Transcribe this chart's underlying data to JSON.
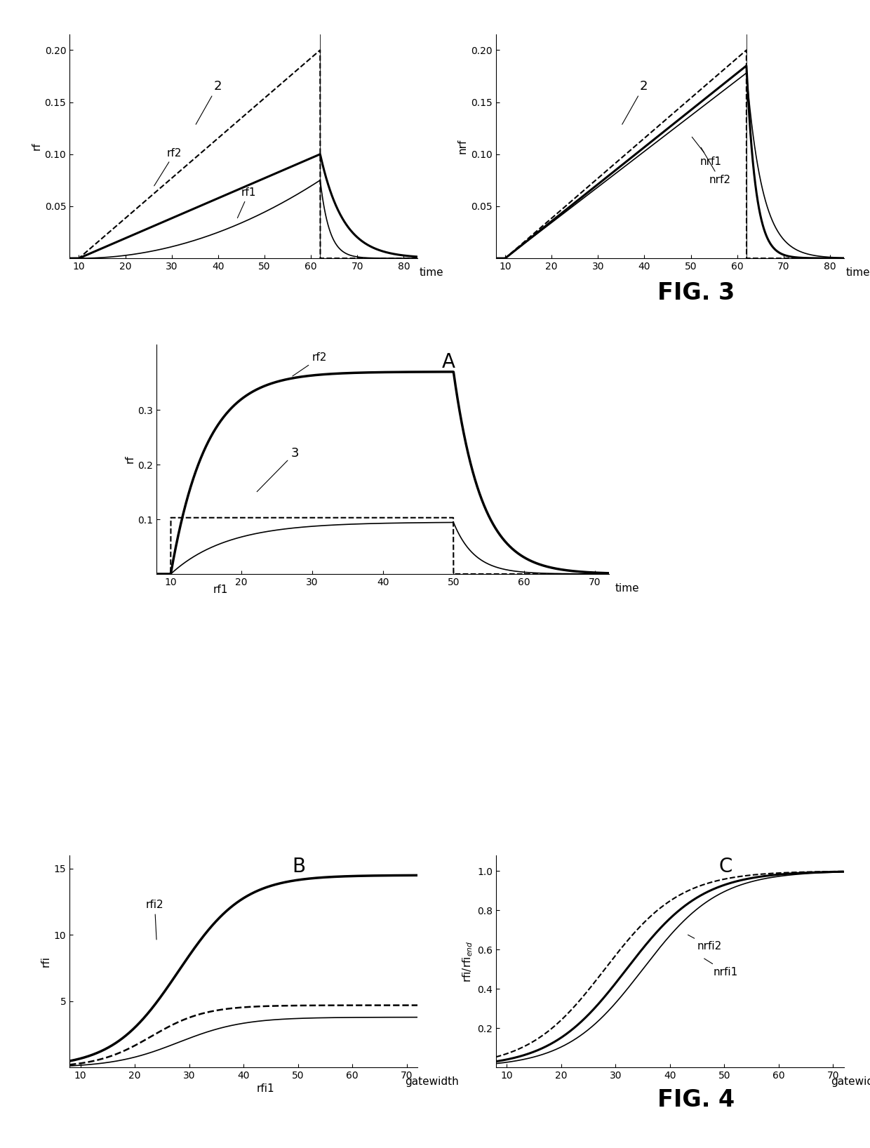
{
  "fig3_left": {
    "ylabel": "rf",
    "xlabel": "time",
    "xlim": [
      8,
      83
    ],
    "ylim": [
      0,
      0.215
    ],
    "yticks": [
      0.05,
      0.1,
      0.15,
      0.2
    ],
    "xticks": [
      10,
      20,
      30,
      40,
      50,
      60,
      70,
      80
    ],
    "label_2": "2",
    "label_rf2": "rf2",
    "label_rf1": "rf1",
    "t_on": 10,
    "t_off": 62
  },
  "fig3_right": {
    "ylabel": "nrf",
    "xlabel": "time",
    "xlim": [
      8,
      83
    ],
    "ylim": [
      0,
      0.215
    ],
    "yticks": [
      0.05,
      0.1,
      0.15,
      0.2
    ],
    "xticks": [
      10,
      20,
      30,
      40,
      50,
      60,
      70,
      80
    ],
    "label_2": "2",
    "label_nrf1": "nrf1",
    "label_nrf2": "nrf2",
    "t_on": 10,
    "t_off": 62
  },
  "fig_A": {
    "ylabel": "rf",
    "xlabel": "time",
    "xlim": [
      8,
      72
    ],
    "ylim": [
      0,
      0.42
    ],
    "yticks": [
      0.1,
      0.2,
      0.3
    ],
    "xticks": [
      10,
      20,
      30,
      40,
      50,
      60,
      70
    ],
    "label_A": "A",
    "label_rf2": "rf2",
    "label_3": "3",
    "label_rf1": "rf1",
    "t_on": 10,
    "t_off": 50
  },
  "fig_B": {
    "ylabel": "rfi",
    "xlabel": "gatewidth",
    "xlim": [
      8,
      72
    ],
    "ylim": [
      0,
      16
    ],
    "yticks": [
      5,
      10,
      15
    ],
    "xticks": [
      10,
      20,
      30,
      40,
      50,
      60,
      70
    ],
    "label_B": "B",
    "label_rfi2": "rfi2",
    "label_rfi1": "rfi1"
  },
  "fig_C": {
    "ylabel": "rfi/rfi_end",
    "xlabel": "gatewidth",
    "xlim": [
      8,
      72
    ],
    "ylim": [
      0,
      1.08
    ],
    "yticks": [
      0.2,
      0.4,
      0.6,
      0.8,
      1.0
    ],
    "xticks": [
      10,
      20,
      30,
      40,
      50,
      60,
      70
    ],
    "label_C": "C",
    "label_nrfi2": "nrfi2",
    "label_nrfi1": "nrfi1"
  },
  "fig3_label": "FIG. 3",
  "fig4_label": "FIG. 4"
}
